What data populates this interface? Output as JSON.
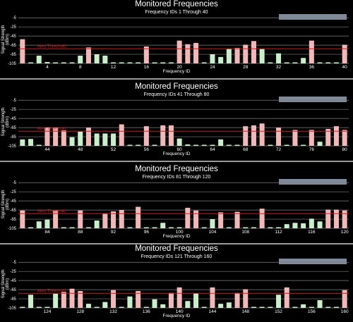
{
  "colors": {
    "background": "#000000",
    "grid": "#7f7f7f",
    "threshold": "#c81e1e",
    "above_threshold_bar": "#f2b8b8",
    "below_threshold_bar": "#c8f0c8",
    "legend_box": "#7f8a9a",
    "separator": "#9a9a9a"
  },
  "chart_data": [
    {
      "type": "bar",
      "title": "Monitored Frequencies",
      "subtitle": "Frequency IDs 1 Through 40",
      "xlabel": "Frequency ID",
      "ylabel": "Signal Strength (dBm)",
      "ytick_labels": [
        "-5",
        "-25",
        "-45",
        "-65",
        "-85",
        "-105"
      ],
      "yticks": [
        -5,
        -25,
        -45,
        -65,
        -85,
        -105
      ],
      "ylim": [
        -105,
        0
      ],
      "threshold": -73,
      "threshold_label": "Alert Threshold",
      "xticks": [
        4,
        8,
        12,
        16,
        20,
        24,
        28,
        32,
        36,
        40
      ],
      "x": [
        1,
        2,
        3,
        4,
        5,
        6,
        7,
        8,
        9,
        10,
        11,
        12,
        13,
        14,
        15,
        16,
        17,
        18,
        19,
        20,
        21,
        22,
        23,
        24,
        25,
        26,
        27,
        28,
        29,
        30,
        31,
        32,
        33,
        34,
        35,
        36,
        37,
        38,
        39,
        40
      ],
      "values": [
        -52,
        -103,
        -88,
        -102,
        -104,
        -103,
        -103,
        -88,
        -70,
        -85,
        -88,
        -103,
        -103,
        -104,
        -104,
        -68,
        -104,
        -104,
        -104,
        -55,
        -63,
        -60,
        -104,
        -85,
        -91,
        -73,
        -71,
        -64,
        -56,
        -73,
        -103,
        -83,
        -104,
        -104,
        -93,
        -55,
        -103,
        -103,
        -103,
        -64
      ]
    },
    {
      "type": "bar",
      "title": "Monitored Frequencies",
      "subtitle": "Frequency IDs 41 Through 80",
      "xlabel": "Frequency ID",
      "ylabel": "Signal Strength (dBm)",
      "ytick_labels": [
        "-5",
        "-25",
        "-45",
        "-65",
        "-85",
        "-105"
      ],
      "yticks": [
        -5,
        -25,
        -45,
        -65,
        -85,
        -105
      ],
      "ylim": [
        -105,
        0
      ],
      "threshold": -73,
      "threshold_label": "Alert Threshold",
      "xticks": [
        44,
        48,
        52,
        56,
        60,
        64,
        68,
        72,
        76,
        80
      ],
      "x": [
        41,
        42,
        43,
        44,
        45,
        46,
        47,
        48,
        49,
        50,
        51,
        52,
        53,
        54,
        55,
        56,
        57,
        58,
        59,
        60,
        61,
        62,
        63,
        64,
        65,
        66,
        67,
        68,
        69,
        70,
        71,
        72,
        73,
        74,
        75,
        76,
        77,
        78,
        79,
        80
      ],
      "values": [
        -91,
        -90,
        -104,
        -65,
        -65,
        -71,
        -86,
        -74,
        -65,
        -78,
        -78,
        -78,
        -58,
        -104,
        -104,
        -62,
        -103,
        -60,
        -60,
        -89,
        -102,
        -104,
        -104,
        -104,
        -91,
        -104,
        -104,
        -62,
        -60,
        -56,
        -104,
        -65,
        -104,
        -70,
        -104,
        -70,
        -96,
        -68,
        -62,
        -70
      ]
    },
    {
      "type": "bar",
      "title": "Monitored Frequencies",
      "subtitle": "Frequency IDs 81 Through 120",
      "xlabel": "Frequency ID",
      "ylabel": "Signal Strength (dBm)",
      "ytick_labels": [
        "-5",
        "-25",
        "-45",
        "-65",
        "-85",
        "-105"
      ],
      "yticks": [
        -5,
        -25,
        -45,
        -65,
        -85,
        -105
      ],
      "ylim": [
        -105,
        0
      ],
      "threshold": -73,
      "threshold_label": "Alert Threshold",
      "xticks": [
        84,
        88,
        92,
        96,
        100,
        104,
        108,
        112,
        116,
        120
      ],
      "x": [
        81,
        82,
        83,
        84,
        85,
        86,
        87,
        88,
        89,
        90,
        91,
        92,
        93,
        94,
        95,
        96,
        97,
        98,
        99,
        100,
        101,
        102,
        103,
        104,
        105,
        106,
        107,
        108,
        109,
        110,
        111,
        112,
        113,
        114,
        115,
        116,
        117,
        118,
        119,
        120
      ],
      "values": [
        -66,
        -104,
        -90,
        -86,
        -66,
        -104,
        -104,
        -66,
        -104,
        -88,
        -72,
        -68,
        -65,
        -104,
        -58,
        -104,
        -104,
        -93,
        -104,
        -104,
        -60,
        -66,
        -104,
        -85,
        -70,
        -104,
        -69,
        -104,
        -104,
        -62,
        -104,
        -104,
        -96,
        -93,
        -94,
        -84,
        -90,
        -64,
        -64,
        -66
      ]
    },
    {
      "type": "bar",
      "title": "Monitored Frequencies",
      "subtitle": "Frequency IDs 121 Through 160",
      "xlabel": "Frequency ID",
      "ylabel": "Signal Strength (dBm)",
      "ytick_labels": [
        "-5",
        "-25",
        "-45",
        "-65",
        "-85",
        "-105"
      ],
      "yticks": [
        -5,
        -25,
        -45,
        -65,
        -85,
        -105
      ],
      "ylim": [
        -105,
        0
      ],
      "threshold": -73,
      "threshold_label": "Alert Threshold",
      "xticks": [
        124,
        128,
        132,
        136,
        140,
        144,
        148,
        152,
        156,
        160
      ],
      "x": [
        121,
        122,
        123,
        124,
        125,
        126,
        127,
        128,
        129,
        130,
        131,
        132,
        133,
        134,
        135,
        136,
        137,
        138,
        139,
        140,
        141,
        142,
        143,
        144,
        145,
        146,
        147,
        148,
        149,
        150,
        151,
        152,
        153,
        154,
        155,
        156,
        157,
        158,
        159,
        160
      ],
      "values": [
        -104,
        -76,
        -104,
        -104,
        -74,
        -70,
        -63,
        -68,
        -96,
        -104,
        -92,
        -66,
        -104,
        -80,
        -68,
        -104,
        -86,
        -97,
        -72,
        -60,
        -90,
        -73,
        -104,
        -60,
        -96,
        -93,
        -72,
        -64,
        -104,
        -104,
        -104,
        -76,
        -60,
        -104,
        -97,
        -104,
        -88,
        -104,
        -104,
        -66
      ]
    }
  ]
}
